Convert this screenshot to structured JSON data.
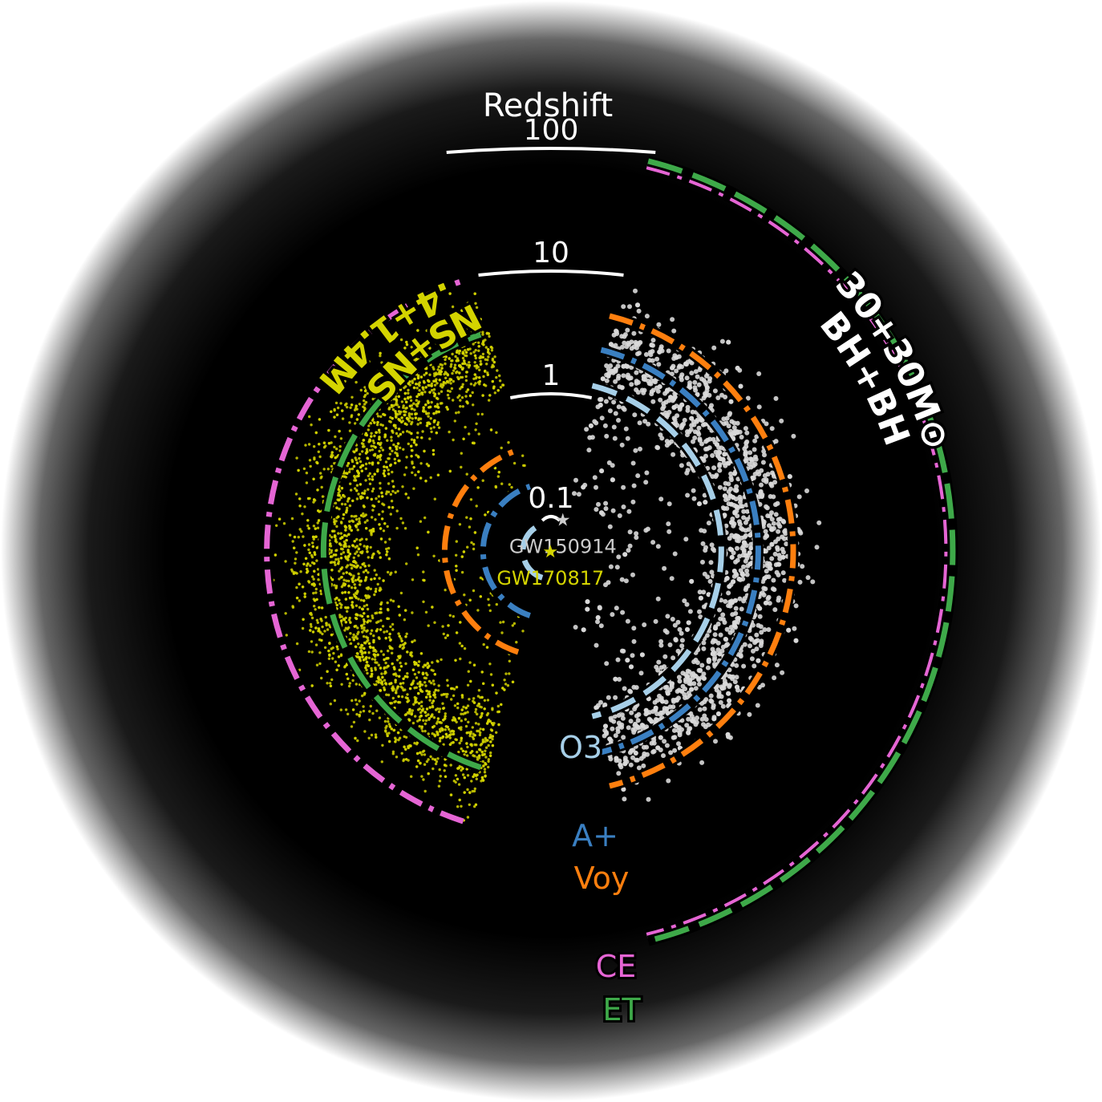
{
  "chart_data": {
    "type": "scatter",
    "title": "",
    "axis": {
      "name": "Redshift",
      "scale": "log",
      "ticks": [
        {
          "value": 0.1,
          "label": "0.1"
        },
        {
          "value": 1,
          "label": "1"
        },
        {
          "value": 10,
          "label": "10"
        },
        {
          "value": 100,
          "label": "100"
        }
      ]
    },
    "populations": [
      {
        "name": "1.4+1.4M⊙",
        "subtitle": "NS+NS",
        "color": "#d4d400",
        "side": "left",
        "inner_z": 1.2,
        "outer_z": 9.0,
        "density_peak_z": 3.0
      },
      {
        "name": "30+30M⊙",
        "subtitle": "BH+BH",
        "color": "#d9d9d9",
        "side": "right",
        "inner_z": 1.0,
        "outer_z": 9.0,
        "density_peak_z": 2.5
      }
    ],
    "detectors": [
      {
        "name": "O3",
        "color": "#a6cfe8",
        "style": "dashed",
        "nsns_horizon_z": 0.09,
        "bbh_horizon_z": 1.3
      },
      {
        "name": "A+",
        "color": "#3a7fc1",
        "style": "dashdot",
        "nsns_horizon_z": 0.19,
        "bbh_horizon_z": 2.6
      },
      {
        "name": "Voy",
        "color": "#ff7f0e",
        "style": "dashdot",
        "nsns_horizon_z": 0.39,
        "bbh_horizon_z": 5.0
      },
      {
        "name": "CE",
        "color": "#e565d4",
        "style": "dashdot",
        "nsns_horizon_z": 11.0,
        "bbh_horizon_z": 90.0
      },
      {
        "name": "ET",
        "color": "#3ea949",
        "style": "longdash",
        "nsns_horizon_z": 3.8,
        "bbh_horizon_z": 100.0
      }
    ],
    "events": [
      {
        "name": "GW150914",
        "z": 0.09,
        "color": "#cccccc"
      },
      {
        "name": "GW170817",
        "z": 0.01,
        "color": "#d4d400"
      }
    ],
    "grid": false,
    "legend": "inline labels"
  }
}
